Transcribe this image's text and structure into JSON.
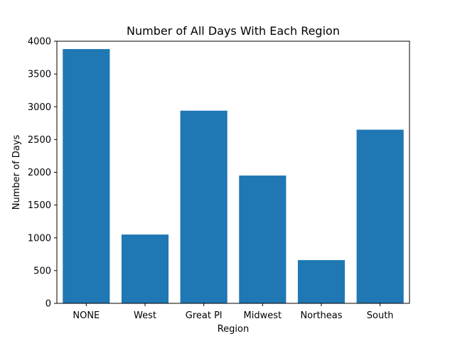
{
  "chart_data": {
    "type": "bar",
    "title": "Number of All Days With Each Region",
    "xlabel": "Region",
    "ylabel": "Number of Days",
    "categories": [
      "NONE",
      "West",
      "Great Pl",
      "Midwest",
      "Northeas",
      "South"
    ],
    "values": [
      3880,
      1050,
      2940,
      1950,
      660,
      2650
    ],
    "ylim": [
      0,
      4000
    ],
    "yticks": [
      0,
      500,
      1000,
      1500,
      2000,
      2500,
      3000,
      3500,
      4000
    ],
    "grid": false,
    "bar_color": "#1f77b4"
  }
}
